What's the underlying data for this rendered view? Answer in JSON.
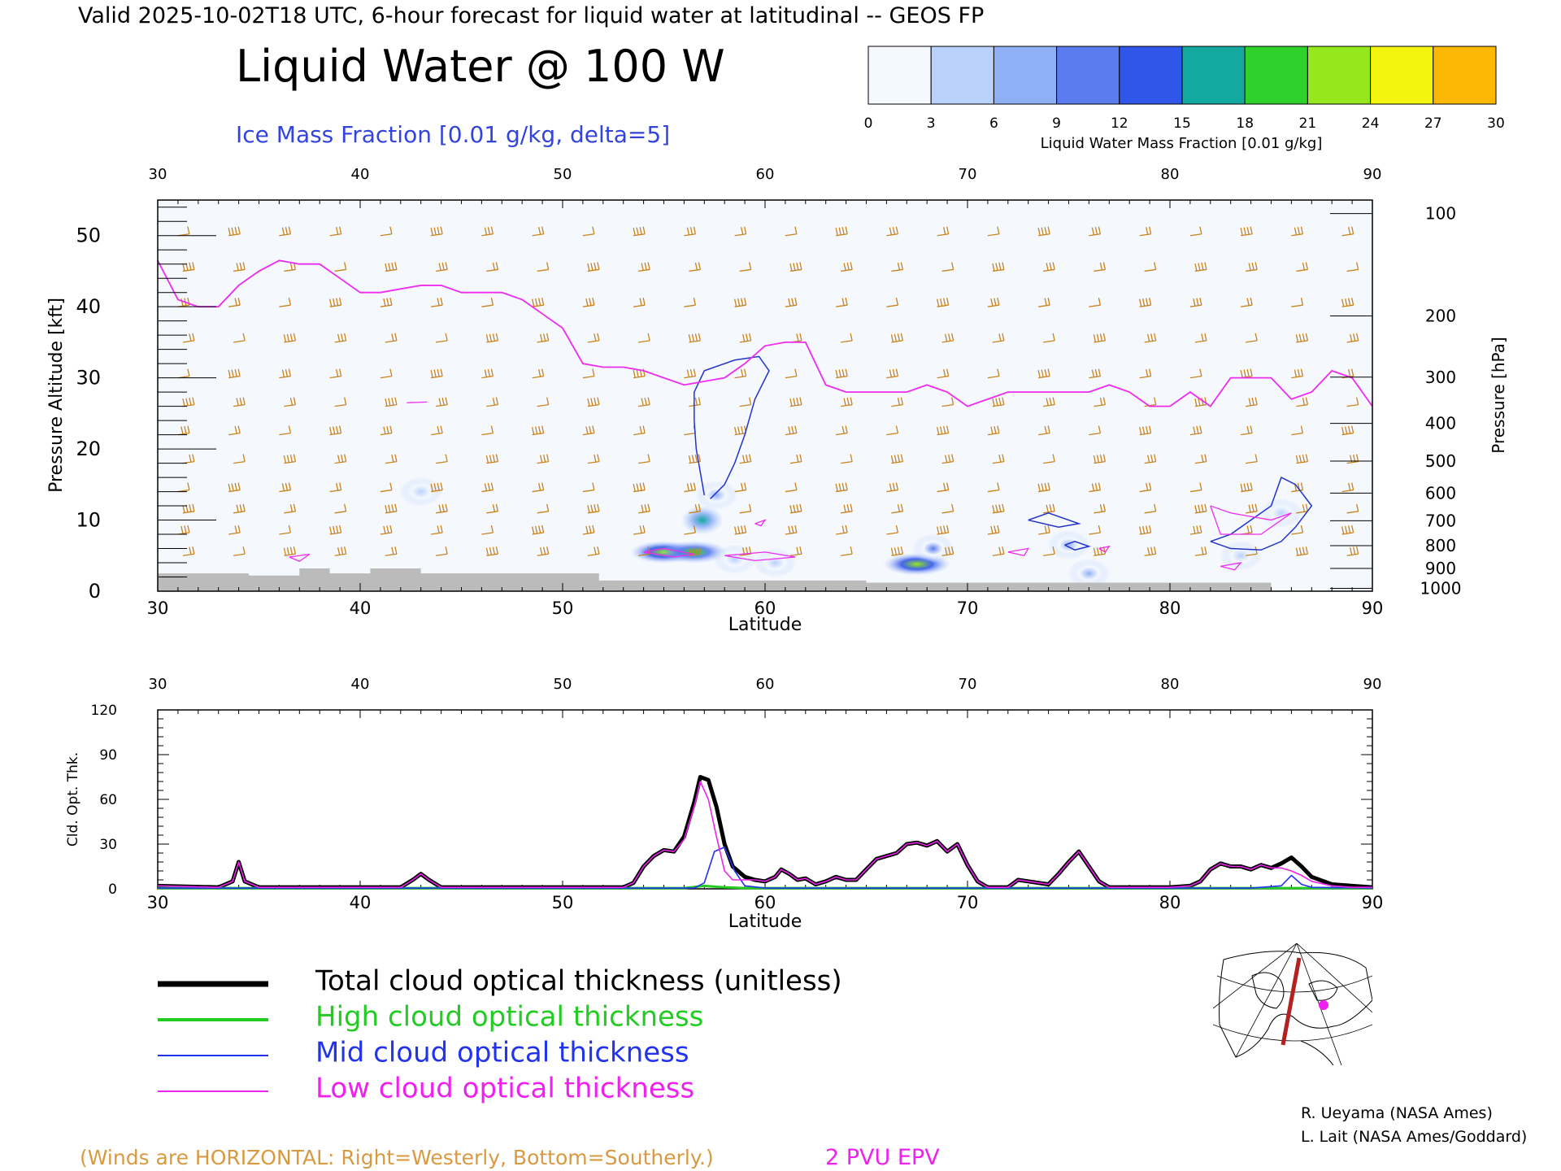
{
  "header": {
    "valid_line": "Valid 2025-10-02T18 UTC, 6-hour forecast for liquid water at latitudinal -- GEOS FP",
    "title": "Liquid Water @ 100 W",
    "ice_label": "Ice Mass Fraction [0.01 g/kg, delta=5]"
  },
  "colorbar": {
    "ticks": [
      "0",
      "3",
      "6",
      "9",
      "12",
      "15",
      "18",
      "21",
      "24",
      "27",
      "30"
    ],
    "label": "Liquid Water Mass Fraction [0.01 g/kg]",
    "colors": [
      "#f4f8ff",
      "#b9d1fb",
      "#8fb0f5",
      "#5a7cee",
      "#2f55e9",
      "#13a8a0",
      "#2ed22a",
      "#95e81d",
      "#f4f50f",
      "#fdb707",
      "#fc6a04"
    ]
  },
  "colors": {
    "wind": "#c8831e",
    "epv": "#ee2bee",
    "ice": "#2233cc",
    "ground": "#bbbbbb",
    "total": "#000000",
    "high": "#22cc22",
    "mid": "#2233ee",
    "low": "#ee22ee"
  },
  "chart_data": [
    {
      "type": "heatmap",
      "xlabel": "Latitude",
      "ylabel_left": "Pressure Altitude [kft]",
      "ylabel_right": "Pressure [hPa]",
      "xlim": [
        30,
        90
      ],
      "ylim": [
        0,
        55
      ],
      "x_ticks": [
        "30",
        "40",
        "50",
        "60",
        "70",
        "80",
        "90"
      ],
      "y_ticks": [
        "0",
        "10",
        "20",
        "30",
        "40",
        "50"
      ],
      "pressure_ticks": [
        {
          "label": "100",
          "kft": 53.1
        },
        {
          "label": "200",
          "kft": 38.7
        },
        {
          "label": "300",
          "kft": 30.1
        },
        {
          "label": "400",
          "kft": 23.6
        },
        {
          "label": "500",
          "kft": 18.3
        },
        {
          "label": "600",
          "kft": 13.8
        },
        {
          "label": "700",
          "kft": 9.9
        },
        {
          "label": "800",
          "kft": 6.4
        },
        {
          "label": "900",
          "kft": 3.2
        },
        {
          "label": "1000",
          "kft": 0.4
        }
      ],
      "epv_2pvu_kft": [
        [
          30,
          46.5
        ],
        [
          31,
          41
        ],
        [
          32,
          40
        ],
        [
          33,
          40
        ],
        [
          34,
          43
        ],
        [
          35,
          45
        ],
        [
          36,
          46.5
        ],
        [
          37,
          46
        ],
        [
          38,
          46
        ],
        [
          39,
          44
        ],
        [
          40,
          42
        ],
        [
          41,
          42
        ],
        [
          42,
          42.5
        ],
        [
          43,
          43
        ],
        [
          44,
          43
        ],
        [
          45,
          42
        ],
        [
          46,
          42
        ],
        [
          47,
          42
        ],
        [
          48,
          41
        ],
        [
          49,
          39
        ],
        [
          50,
          37
        ],
        [
          51,
          32
        ],
        [
          52,
          31.5
        ],
        [
          53,
          31.5
        ],
        [
          54,
          31
        ],
        [
          55,
          30
        ],
        [
          56,
          29
        ],
        [
          57,
          29.5
        ],
        [
          58,
          30
        ],
        [
          59,
          32
        ],
        [
          60,
          34.5
        ],
        [
          61,
          35
        ],
        [
          62,
          35
        ],
        [
          63,
          29
        ],
        [
          64,
          28
        ],
        [
          65,
          28
        ],
        [
          66,
          28
        ],
        [
          67,
          28
        ],
        [
          68,
          29
        ],
        [
          69,
          28
        ],
        [
          70,
          26
        ],
        [
          71,
          27
        ],
        [
          72,
          28
        ],
        [
          73,
          28
        ],
        [
          74,
          28
        ],
        [
          75,
          28
        ],
        [
          76,
          28
        ],
        [
          77,
          29
        ],
        [
          78,
          28
        ],
        [
          79,
          26
        ],
        [
          80,
          26
        ],
        [
          81,
          28
        ],
        [
          82,
          26
        ],
        [
          83,
          30
        ],
        [
          84,
          30
        ],
        [
          85,
          30
        ],
        [
          86,
          27
        ],
        [
          87,
          28
        ],
        [
          88,
          31
        ],
        [
          89,
          30
        ],
        [
          90,
          26
        ]
      ],
      "liquid_water_patches": [
        {
          "lat": 55.0,
          "kft": 5.5,
          "value": 21
        },
        {
          "lat": 56.5,
          "kft": 5.5,
          "value": 18
        },
        {
          "lat": 56.9,
          "kft": 10.0,
          "value": 15
        },
        {
          "lat": 57.6,
          "kft": 13.5,
          "value": 6
        },
        {
          "lat": 58.5,
          "kft": 4.5,
          "value": 3
        },
        {
          "lat": 60.5,
          "kft": 4.0,
          "value": 3
        },
        {
          "lat": 67.5,
          "kft": 3.8,
          "value": 21
        },
        {
          "lat": 68.3,
          "kft": 6.0,
          "value": 9
        },
        {
          "lat": 75.0,
          "kft": 6.5,
          "value": 6
        },
        {
          "lat": 76.0,
          "kft": 2.5,
          "value": 6
        },
        {
          "lat": 83.5,
          "kft": 5.0,
          "value": 3
        },
        {
          "lat": 85.5,
          "kft": 11.0,
          "value": 3
        },
        {
          "lat": 43.0,
          "kft": 14.0,
          "value": 3
        }
      ]
    },
    {
      "type": "line",
      "xlabel": "Latitude",
      "ylabel": "Cld. Opt. Thk.",
      "xlim": [
        30,
        90
      ],
      "ylim": [
        0,
        120
      ],
      "x_ticks": [
        "30",
        "40",
        "50",
        "60",
        "70",
        "80",
        "90"
      ],
      "y_ticks": [
        "0",
        "30",
        "60",
        "90",
        "120"
      ],
      "series": [
        {
          "name": "Total cloud optical thickness (unitless)",
          "points": [
            [
              30,
              2
            ],
            [
              33,
              1
            ],
            [
              33.7,
              5
            ],
            [
              34,
              18
            ],
            [
              34.3,
              5
            ],
            [
              35,
              1
            ],
            [
              42,
              1
            ],
            [
              42.6,
              6
            ],
            [
              43,
              10
            ],
            [
              43.4,
              6
            ],
            [
              44,
              1
            ],
            [
              53,
              1
            ],
            [
              53.5,
              4
            ],
            [
              54,
              15
            ],
            [
              54.5,
              22
            ],
            [
              55,
              26
            ],
            [
              55.5,
              25
            ],
            [
              56,
              35
            ],
            [
              56.5,
              58
            ],
            [
              56.8,
              75
            ],
            [
              57.2,
              73
            ],
            [
              57.6,
              55
            ],
            [
              58,
              30
            ],
            [
              58.4,
              15
            ],
            [
              59,
              8
            ],
            [
              59.5,
              6
            ],
            [
              60,
              5
            ],
            [
              60.5,
              8
            ],
            [
              60.8,
              13
            ],
            [
              61.2,
              10
            ],
            [
              61.6,
              6
            ],
            [
              62,
              7
            ],
            [
              62.5,
              3
            ],
            [
              63,
              5
            ],
            [
              63.5,
              8
            ],
            [
              64,
              6
            ],
            [
              64.5,
              6
            ],
            [
              65,
              13
            ],
            [
              65.5,
              20
            ],
            [
              66,
              22
            ],
            [
              66.5,
              24
            ],
            [
              67,
              30
            ],
            [
              67.5,
              31
            ],
            [
              68,
              29
            ],
            [
              68.5,
              32
            ],
            [
              69,
              25
            ],
            [
              69.5,
              30
            ],
            [
              70,
              16
            ],
            [
              70.5,
              5
            ],
            [
              71,
              1
            ],
            [
              72,
              1
            ],
            [
              72.5,
              6
            ],
            [
              73,
              5
            ],
            [
              74,
              3
            ],
            [
              74.5,
              10
            ],
            [
              75,
              18
            ],
            [
              75.5,
              25
            ],
            [
              76,
              15
            ],
            [
              76.5,
              5
            ],
            [
              77,
              1
            ],
            [
              80,
              1
            ],
            [
              81,
              2
            ],
            [
              81.5,
              5
            ],
            [
              82,
              13
            ],
            [
              82.5,
              17
            ],
            [
              83,
              15
            ],
            [
              83.5,
              15
            ],
            [
              84,
              13
            ],
            [
              84.5,
              16
            ],
            [
              85,
              14
            ],
            [
              85.5,
              17
            ],
            [
              86,
              21
            ],
            [
              86.5,
              15
            ],
            [
              87,
              8
            ],
            [
              88,
              3
            ],
            [
              89,
              2
            ],
            [
              90,
              1
            ]
          ]
        },
        {
          "name": "High cloud optical thickness",
          "points": [
            [
              30,
              0.5
            ],
            [
              56,
              0.5
            ],
            [
              57,
              2
            ],
            [
              58,
              1
            ],
            [
              59,
              0.5
            ],
            [
              90,
              0.5
            ]
          ]
        },
        {
          "name": "Mid cloud optical thickness",
          "points": [
            [
              30,
              0.5
            ],
            [
              56.5,
              0.5
            ],
            [
              57,
              4
            ],
            [
              57.5,
              25
            ],
            [
              58,
              28
            ],
            [
              58.5,
              12
            ],
            [
              59,
              2
            ],
            [
              60,
              0.5
            ],
            [
              84,
              0.5
            ],
            [
              85.5,
              2
            ],
            [
              86,
              9
            ],
            [
              86.5,
              3
            ],
            [
              87,
              1
            ],
            [
              90,
              0.5
            ]
          ]
        },
        {
          "name": "Low cloud optical thickness",
          "points": [
            [
              30,
              2
            ],
            [
              33,
              1
            ],
            [
              33.7,
              5
            ],
            [
              34,
              18
            ],
            [
              34.3,
              5
            ],
            [
              35,
              1
            ],
            [
              42,
              1
            ],
            [
              42.6,
              6
            ],
            [
              43,
              10
            ],
            [
              43.4,
              6
            ],
            [
              44,
              1
            ],
            [
              53,
              1
            ],
            [
              53.5,
              4
            ],
            [
              54,
              15
            ],
            [
              54.5,
              22
            ],
            [
              55,
              26
            ],
            [
              55.5,
              25
            ],
            [
              56,
              33
            ],
            [
              56.5,
              55
            ],
            [
              56.8,
              72
            ],
            [
              57.2,
              60
            ],
            [
              57.6,
              35
            ],
            [
              58,
              12
            ],
            [
              58.4,
              6
            ],
            [
              59,
              6
            ],
            [
              59.5,
              6
            ],
            [
              60,
              5
            ],
            [
              60.5,
              8
            ],
            [
              60.8,
              13
            ],
            [
              61.2,
              10
            ],
            [
              61.6,
              6
            ],
            [
              62,
              7
            ],
            [
              62.5,
              3
            ],
            [
              63,
              5
            ],
            [
              63.5,
              8
            ],
            [
              64,
              6
            ],
            [
              64.5,
              6
            ],
            [
              65,
              13
            ],
            [
              65.5,
              20
            ],
            [
              66,
              22
            ],
            [
              66.5,
              24
            ],
            [
              67,
              30
            ],
            [
              67.5,
              31
            ],
            [
              68,
              29
            ],
            [
              68.5,
              32
            ],
            [
              69,
              25
            ],
            [
              69.5,
              30
            ],
            [
              70,
              16
            ],
            [
              70.5,
              5
            ],
            [
              71,
              1
            ],
            [
              72,
              1
            ],
            [
              72.5,
              6
            ],
            [
              73,
              5
            ],
            [
              74,
              3
            ],
            [
              74.5,
              10
            ],
            [
              75,
              18
            ],
            [
              75.5,
              25
            ],
            [
              76,
              15
            ],
            [
              76.5,
              5
            ],
            [
              77,
              1
            ],
            [
              80,
              1
            ],
            [
              81,
              2
            ],
            [
              81.5,
              5
            ],
            [
              82,
              13
            ],
            [
              82.5,
              17
            ],
            [
              83,
              15
            ],
            [
              83.5,
              15
            ],
            [
              84,
              13
            ],
            [
              84.5,
              16
            ],
            [
              85,
              14
            ],
            [
              85.5,
              14
            ],
            [
              86,
              12
            ],
            [
              86.5,
              9
            ],
            [
              87,
              5
            ],
            [
              88,
              2
            ],
            [
              89,
              1
            ],
            [
              90,
              1
            ]
          ]
        }
      ]
    }
  ],
  "legend": {
    "total": "Total cloud optical thickness (unitless)",
    "high": "High cloud optical thickness",
    "mid": "Mid cloud optical thickness",
    "low": "Low cloud optical thickness"
  },
  "footer": {
    "winds_note": "(Winds are HORIZONTAL: Right=Westerly, Bottom=Southerly.)",
    "epv_note": "2 PVU EPV",
    "credit1": "R. Ueyama (NASA Ames)",
    "credit2": "L. Lait (NASA Ames/Goddard)"
  }
}
